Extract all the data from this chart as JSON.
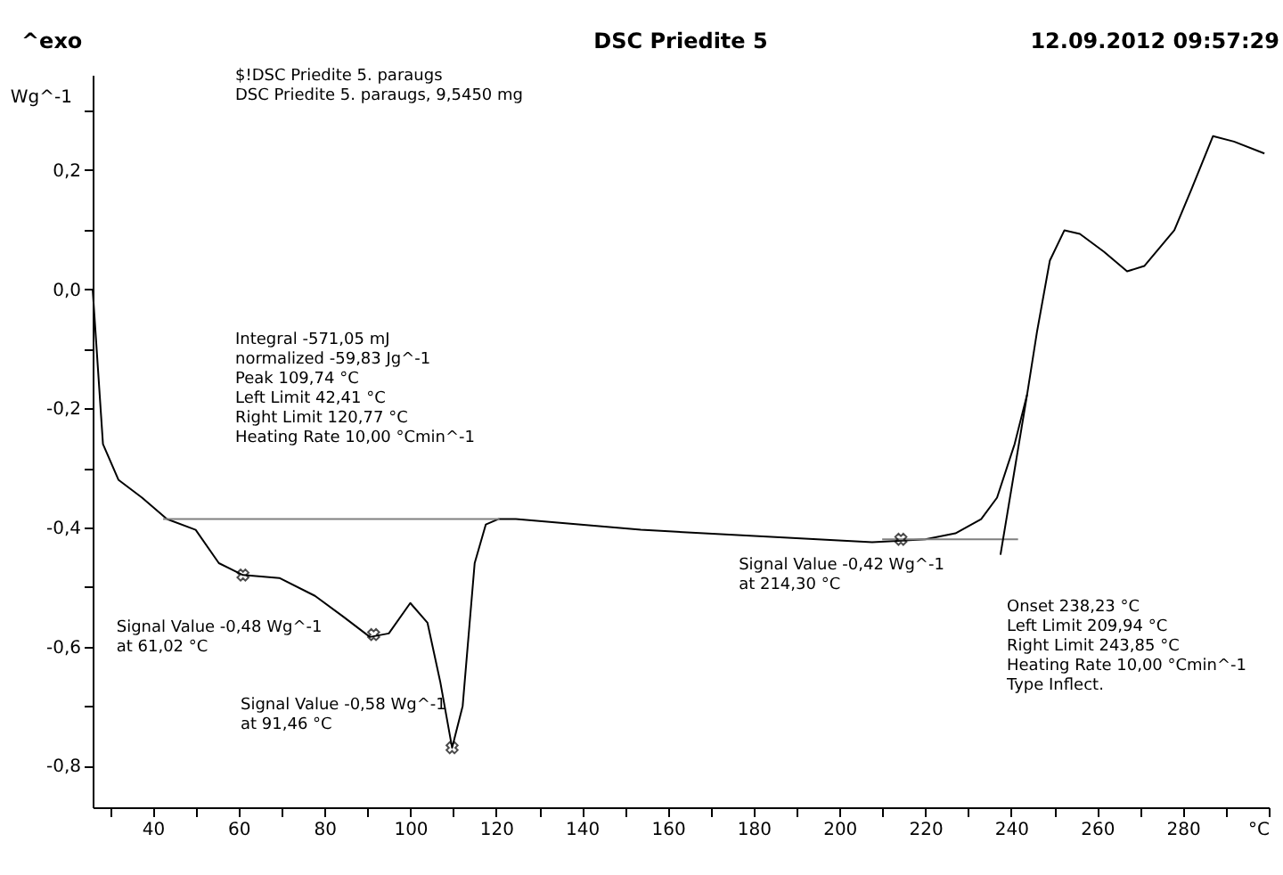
{
  "chart_data": {
    "type": "line",
    "title": "DSC Priedite 5",
    "ylabel": "Wg^-1",
    "xlim": [
      26,
      300
    ],
    "ylim": [
      -0.87,
      0.36
    ],
    "xticks": [
      {
        "value": 30,
        "label": null
      },
      40,
      {
        "value": 50,
        "label": null
      },
      60,
      {
        "value": 70,
        "label": null
      },
      80,
      {
        "value": 90,
        "label": null
      },
      100,
      {
        "value": 110,
        "label": null
      },
      120,
      {
        "value": 130,
        "label": null
      },
      140,
      {
        "value": 150,
        "label": null
      },
      160,
      {
        "value": 170,
        "label": null
      },
      180,
      {
        "value": 190,
        "label": null
      },
      200,
      {
        "value": 210,
        "label": null
      },
      220,
      {
        "value": 230,
        "label": null
      },
      240,
      {
        "value": 250,
        "label": null
      },
      260,
      {
        "value": 270,
        "label": null
      },
      280,
      {
        "value": 290,
        "label": null
      },
      {
        "value": 300,
        "label": "°C"
      }
    ],
    "yticks": [
      {
        "value": -0.8,
        "label": "-0,8"
      },
      {
        "value": -0.7,
        "label": null
      },
      {
        "value": -0.6,
        "label": "-0,6"
      },
      {
        "value": -0.5,
        "label": null
      },
      {
        "value": -0.4,
        "label": "-0,4"
      },
      {
        "value": -0.3,
        "label": null
      },
      {
        "value": -0.2,
        "label": "-0,2"
      },
      {
        "value": -0.1,
        "label": null
      },
      {
        "value": 0.0,
        "label": "0,0"
      },
      {
        "value": 0.1,
        "label": null
      },
      {
        "value": 0.2,
        "label": "0,2"
      },
      {
        "value": 0.3,
        "label": null
      }
    ],
    "grid": false,
    "series": [
      {
        "color": "#000000",
        "marker": "none",
        "x": [
          26,
          28.4,
          32,
          37.5,
          43.3,
          50,
          55.4,
          61,
          69.5,
          77.8,
          84.4,
          90.6,
          95,
          100,
          104,
          107,
          109.74,
          112.2,
          115,
          117.6,
          120.5,
          124.6,
          153.7,
          207.6,
          220,
          227,
          233,
          236.7,
          240.8,
          243.7,
          246,
          249,
          252.4,
          256,
          261.6,
          267,
          271,
          278,
          282,
          287,
          291.9,
          299
        ],
        "values": [
          0.0,
          -0.26,
          -0.32,
          -0.35,
          -0.386,
          -0.404,
          -0.46,
          -0.48,
          -0.485,
          -0.515,
          -0.55,
          -0.584,
          -0.578,
          -0.527,
          -0.56,
          -0.66,
          -0.77,
          -0.7,
          -0.46,
          -0.395,
          -0.386,
          -0.386,
          -0.404,
          -0.425,
          -0.42,
          -0.41,
          -0.386,
          -0.35,
          -0.26,
          -0.177,
          -0.072,
          0.048,
          0.099,
          0.093,
          0.063,
          0.03,
          0.039,
          0.099,
          0.168,
          0.257,
          0.248,
          0.228
        ]
      },
      {
        "type": "line",
        "color": "#808080",
        "marker": "none",
        "x": [
          42.41,
          120.77
        ],
        "values": [
          -0.386,
          -0.386
        ]
      },
      {
        "type": "line",
        "color": "#808080",
        "marker": "none",
        "x": [
          209.94,
          241.6
        ],
        "values": [
          -0.42,
          -0.42
        ]
      },
      {
        "type": "line",
        "color": "#000000",
        "marker": "none",
        "x": [
          237.5,
          243.7
        ],
        "values": [
          -0.446,
          -0.177
        ]
      },
      {
        "type": "scatter",
        "color": "#000000",
        "marker": "cross",
        "x": [
          61.02,
          91.46,
          109.74,
          214.3
        ],
        "values": [
          -0.48,
          -0.58,
          -0.77,
          -0.42
        ]
      }
    ],
    "annotations": [
      "^exo",
      "12.09.2012 09:57:29",
      "$!DSC Priedite 5. paraugs\nDSC Priedite 5. paraugs, 9,5450 mg",
      "Integral -571,05 mJ\n  normalized -59,83 Jg^-1\nPeak 109,74 °C\nLeft Limit 42,41 °C\nRight Limit 120,77 °C\nHeating Rate 10,00 °Cmin^-1",
      {
        "text": "Signal Value -0,48 Wg^-1\nat 61,02 °C",
        "x": 61.02,
        "y": -0.48
      },
      "Signal Value -0,58 Wg^-1\nat 91,46 °C",
      {
        "text": "Signal Value -0,42 Wg^-1\nat 214,30 °C",
        "x": 214.3,
        "y": -0.42
      },
      "Onset 238,23 °C\nLeft Limit 209,94 °C\nRight Limit 243,85 °C\nHeating Rate 10,00 °Cmin^-1\nType Inflect."
    ]
  }
}
